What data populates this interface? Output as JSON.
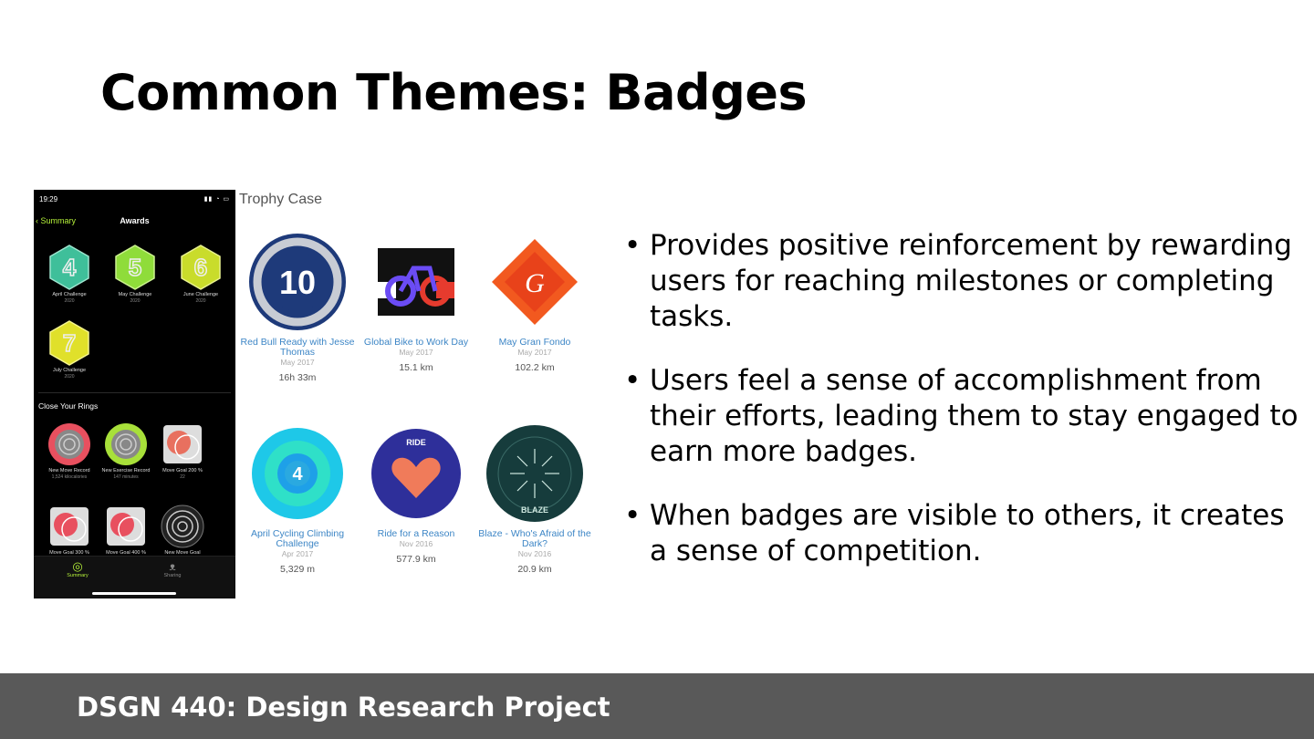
{
  "slide": {
    "title": "Common Themes: Badges",
    "footer": "DSGN 440: Design Research Project"
  },
  "phone": {
    "time": "19:29",
    "nav_back": "Summary",
    "nav_title": "Awards",
    "awards": [
      {
        "label": "April Challenge",
        "sub": "2020",
        "number": "4",
        "color": "#3fbf9a"
      },
      {
        "label": "May Challenge",
        "sub": "2020",
        "number": "5",
        "color": "#8fdc3a"
      },
      {
        "label": "June Challenge",
        "sub": "2020",
        "number": "6",
        "color": "#c9dc2b"
      },
      {
        "label": "July Challenge",
        "sub": "2020",
        "number": "7",
        "color": "#e0e02a"
      }
    ],
    "section_label": "Close Your Rings",
    "rings": [
      {
        "label": "New Move Record",
        "sub": "1,524 kilocalories"
      },
      {
        "label": "New Exercise Record",
        "sub": "147 minutes"
      },
      {
        "label": "Move Goal 200 %",
        "sub": "22"
      },
      {
        "label": "Move Goal 300 %",
        "sub": ""
      },
      {
        "label": "Move Goal 400 %",
        "sub": ""
      },
      {
        "label": "New Move Goal",
        "sub": ""
      }
    ],
    "tabs": {
      "summary": "Summary",
      "sharing": "Sharing"
    }
  },
  "trophy_case": {
    "title": "Trophy Case",
    "badges": [
      {
        "name": "Red Bull Ready with Jesse Thomas",
        "date": "May 2017",
        "stat": "16h 33m",
        "art": "10"
      },
      {
        "name": "Global Bike to Work Day",
        "date": "May 2017",
        "stat": "15.1 km",
        "art": ""
      },
      {
        "name": "May Gran Fondo",
        "date": "May 2017",
        "stat": "102.2 km",
        "art": "G"
      },
      {
        "name": "April Cycling Climbing Challenge",
        "date": "Apr 2017",
        "stat": "5,329 m",
        "art": "4"
      },
      {
        "name": "Ride for a Reason",
        "date": "Nov 2016",
        "stat": "577.9 km",
        "art": "RIDE"
      },
      {
        "name": "Blaze - Who's Afraid of the Dark?",
        "date": "Nov 2016",
        "stat": "20.9 km",
        "art": "BLAZE"
      }
    ]
  },
  "bullets": [
    "Provides positive reinforcement by rewarding users for reaching milestones or completing tasks.",
    "Users feel a sense of accomplishment from their efforts, leading them to stay engaged to earn more badges.",
    "When badges are visible to others, it creates a sense of competition."
  ]
}
